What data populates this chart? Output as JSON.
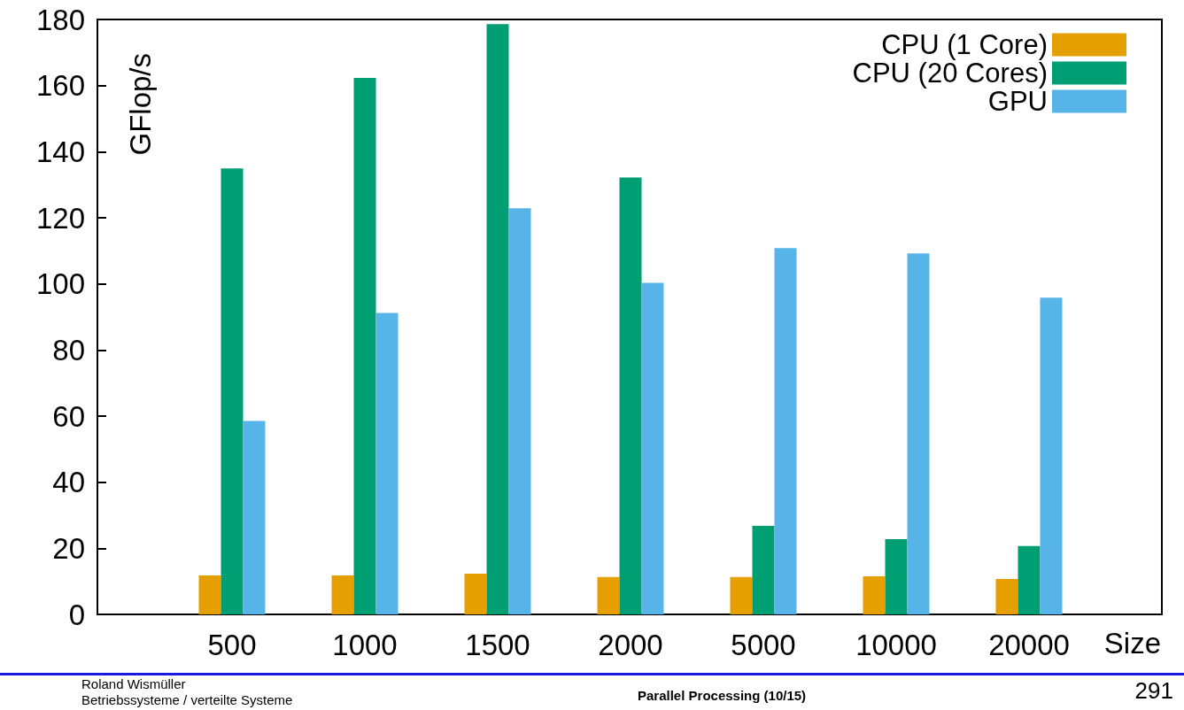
{
  "chart_data": {
    "type": "bar",
    "xlabel": "Size",
    "ylabel": "GFlop/s",
    "categories": [
      "500",
      "1000",
      "1500",
      "2000",
      "5000",
      "10000",
      "20000"
    ],
    "series": [
      {
        "name": "CPU (1 Core)",
        "color": "#e69f00",
        "values": [
          11.8,
          11.8,
          12.3,
          11.3,
          11.3,
          11.5,
          10.7
        ]
      },
      {
        "name": "CPU (20 Cores)",
        "color": "#009e73",
        "values": [
          134.9,
          162.3,
          178.6,
          132.2,
          26.8,
          22.8,
          20.7
        ]
      },
      {
        "name": "GPU",
        "color": "#56b4e9",
        "values": [
          58.5,
          91.2,
          122.9,
          100.3,
          110.8,
          109.2,
          95.8
        ]
      }
    ],
    "ylim": [
      0,
      180
    ],
    "yticks": [
      0,
      20,
      40,
      60,
      80,
      100,
      120,
      140,
      160,
      180
    ],
    "grid": false,
    "legend": "top right",
    "annotations": [
      "Roland Wismüller",
      "Betriebssysteme / verteilte Systeme",
      "Parallel Processing (10/15)",
      "291"
    ]
  }
}
